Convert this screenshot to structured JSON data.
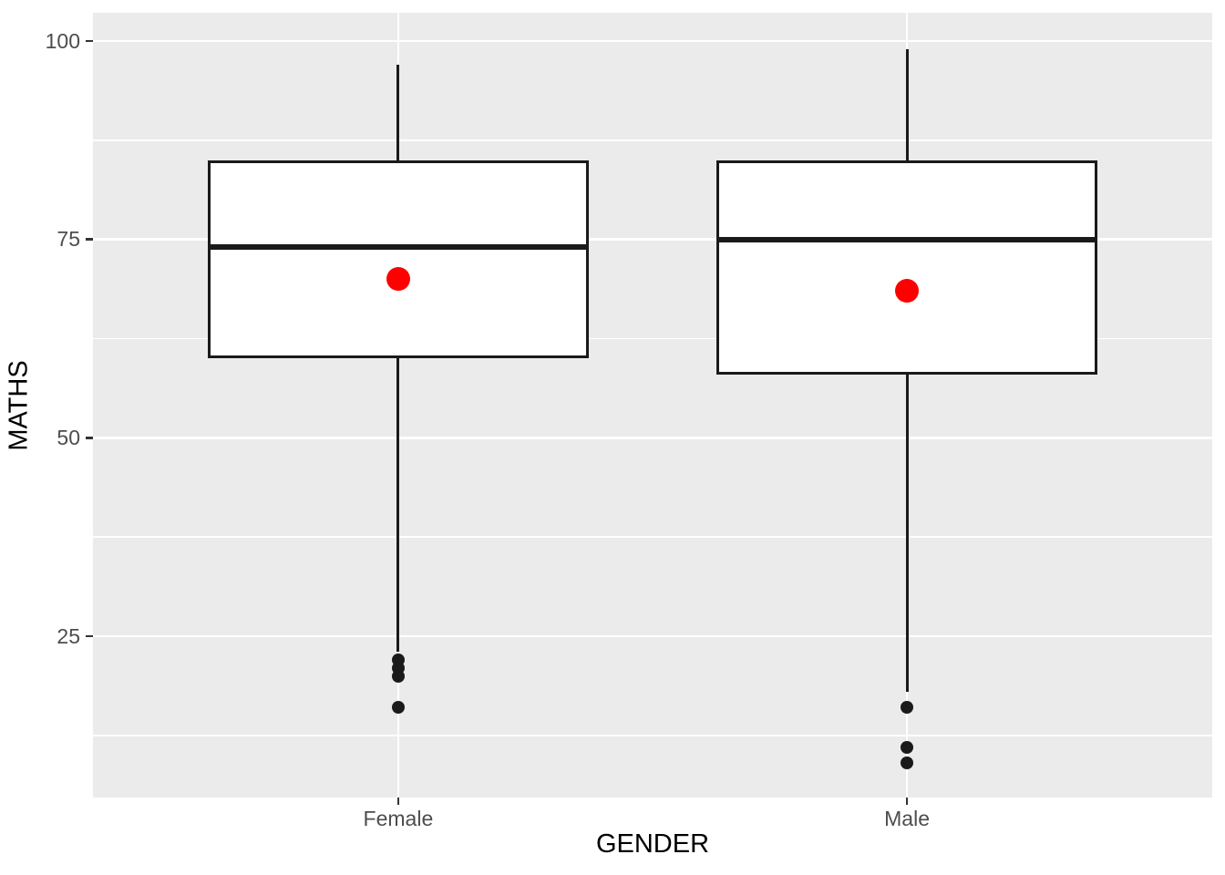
{
  "chart_data": {
    "type": "boxplot",
    "title": "",
    "xlabel": "GENDER",
    "ylabel": "MATHS",
    "categories": [
      "Female",
      "Male"
    ],
    "y_ticks": [
      100,
      75,
      50,
      25
    ],
    "y_minor_gridlines": [
      87.5,
      62.5,
      37.5,
      12.5
    ],
    "ylim": [
      4.5,
      103.5
    ],
    "grid": true,
    "legend": "none",
    "series": [
      {
        "category": "Female",
        "whisker_low": 23,
        "q1": 60,
        "median": 74,
        "q3": 85,
        "whisker_high": 97,
        "mean": 70,
        "outliers": [
          22,
          21,
          20,
          16
        ]
      },
      {
        "category": "Male",
        "whisker_low": 18,
        "q1": 58,
        "median": 75,
        "q3": 85,
        "whisker_high": 99,
        "mean": 68.5,
        "outliers": [
          16,
          11,
          9
        ]
      }
    ],
    "colors": {
      "figure_background": "#FFFFFF",
      "panel_background": "#EBEBEB",
      "gridline": "#FFFFFF",
      "box_fill": "#FFFFFF",
      "box_stroke": "#1A1A1A",
      "median_stroke": "#1A1A1A",
      "whisker_stroke": "#1A1A1A",
      "outlier_point": "#1A1A1A",
      "mean_point": "#FF0000",
      "axis_text": "#4D4D4D",
      "axis_title": "#000000",
      "tick_mark": "#333333"
    }
  }
}
